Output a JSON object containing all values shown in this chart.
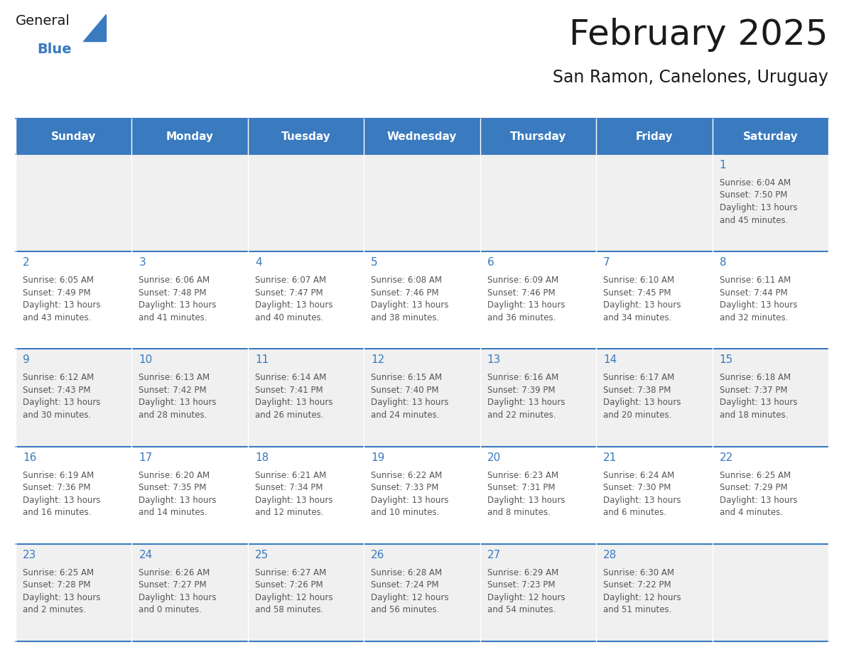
{
  "title": "February 2025",
  "subtitle": "San Ramon, Canelones, Uruguay",
  "header_bg": "#3a7abf",
  "header_text": "#ffffff",
  "cell_bg_light": "#f0f0f0",
  "cell_bg_white": "#ffffff",
  "day_number_color": "#3a7abf",
  "info_text_color": "#555555",
  "border_color": "#3a7abf",
  "days_of_week": [
    "Sunday",
    "Monday",
    "Tuesday",
    "Wednesday",
    "Thursday",
    "Friday",
    "Saturday"
  ],
  "calendar_data": [
    [
      null,
      null,
      null,
      null,
      null,
      null,
      {
        "day": 1,
        "sunrise": "6:04 AM",
        "sunset": "7:50 PM",
        "daylight_line1": "13 hours",
        "daylight_line2": "and 45 minutes."
      }
    ],
    [
      {
        "day": 2,
        "sunrise": "6:05 AM",
        "sunset": "7:49 PM",
        "daylight_line1": "13 hours",
        "daylight_line2": "and 43 minutes."
      },
      {
        "day": 3,
        "sunrise": "6:06 AM",
        "sunset": "7:48 PM",
        "daylight_line1": "13 hours",
        "daylight_line2": "and 41 minutes."
      },
      {
        "day": 4,
        "sunrise": "6:07 AM",
        "sunset": "7:47 PM",
        "daylight_line1": "13 hours",
        "daylight_line2": "and 40 minutes."
      },
      {
        "day": 5,
        "sunrise": "6:08 AM",
        "sunset": "7:46 PM",
        "daylight_line1": "13 hours",
        "daylight_line2": "and 38 minutes."
      },
      {
        "day": 6,
        "sunrise": "6:09 AM",
        "sunset": "7:46 PM",
        "daylight_line1": "13 hours",
        "daylight_line2": "and 36 minutes."
      },
      {
        "day": 7,
        "sunrise": "6:10 AM",
        "sunset": "7:45 PM",
        "daylight_line1": "13 hours",
        "daylight_line2": "and 34 minutes."
      },
      {
        "day": 8,
        "sunrise": "6:11 AM",
        "sunset": "7:44 PM",
        "daylight_line1": "13 hours",
        "daylight_line2": "and 32 minutes."
      }
    ],
    [
      {
        "day": 9,
        "sunrise": "6:12 AM",
        "sunset": "7:43 PM",
        "daylight_line1": "13 hours",
        "daylight_line2": "and 30 minutes."
      },
      {
        "day": 10,
        "sunrise": "6:13 AM",
        "sunset": "7:42 PM",
        "daylight_line1": "13 hours",
        "daylight_line2": "and 28 minutes."
      },
      {
        "day": 11,
        "sunrise": "6:14 AM",
        "sunset": "7:41 PM",
        "daylight_line1": "13 hours",
        "daylight_line2": "and 26 minutes."
      },
      {
        "day": 12,
        "sunrise": "6:15 AM",
        "sunset": "7:40 PM",
        "daylight_line1": "13 hours",
        "daylight_line2": "and 24 minutes."
      },
      {
        "day": 13,
        "sunrise": "6:16 AM",
        "sunset": "7:39 PM",
        "daylight_line1": "13 hours",
        "daylight_line2": "and 22 minutes."
      },
      {
        "day": 14,
        "sunrise": "6:17 AM",
        "sunset": "7:38 PM",
        "daylight_line1": "13 hours",
        "daylight_line2": "and 20 minutes."
      },
      {
        "day": 15,
        "sunrise": "6:18 AM",
        "sunset": "7:37 PM",
        "daylight_line1": "13 hours",
        "daylight_line2": "and 18 minutes."
      }
    ],
    [
      {
        "day": 16,
        "sunrise": "6:19 AM",
        "sunset": "7:36 PM",
        "daylight_line1": "13 hours",
        "daylight_line2": "and 16 minutes."
      },
      {
        "day": 17,
        "sunrise": "6:20 AM",
        "sunset": "7:35 PM",
        "daylight_line1": "13 hours",
        "daylight_line2": "and 14 minutes."
      },
      {
        "day": 18,
        "sunrise": "6:21 AM",
        "sunset": "7:34 PM",
        "daylight_line1": "13 hours",
        "daylight_line2": "and 12 minutes."
      },
      {
        "day": 19,
        "sunrise": "6:22 AM",
        "sunset": "7:33 PM",
        "daylight_line1": "13 hours",
        "daylight_line2": "and 10 minutes."
      },
      {
        "day": 20,
        "sunrise": "6:23 AM",
        "sunset": "7:31 PM",
        "daylight_line1": "13 hours",
        "daylight_line2": "and 8 minutes."
      },
      {
        "day": 21,
        "sunrise": "6:24 AM",
        "sunset": "7:30 PM",
        "daylight_line1": "13 hours",
        "daylight_line2": "and 6 minutes."
      },
      {
        "day": 22,
        "sunrise": "6:25 AM",
        "sunset": "7:29 PM",
        "daylight_line1": "13 hours",
        "daylight_line2": "and 4 minutes."
      }
    ],
    [
      {
        "day": 23,
        "sunrise": "6:25 AM",
        "sunset": "7:28 PM",
        "daylight_line1": "13 hours",
        "daylight_line2": "and 2 minutes."
      },
      {
        "day": 24,
        "sunrise": "6:26 AM",
        "sunset": "7:27 PM",
        "daylight_line1": "13 hours",
        "daylight_line2": "and 0 minutes."
      },
      {
        "day": 25,
        "sunrise": "6:27 AM",
        "sunset": "7:26 PM",
        "daylight_line1": "12 hours",
        "daylight_line2": "and 58 minutes."
      },
      {
        "day": 26,
        "sunrise": "6:28 AM",
        "sunset": "7:24 PM",
        "daylight_line1": "12 hours",
        "daylight_line2": "and 56 minutes."
      },
      {
        "day": 27,
        "sunrise": "6:29 AM",
        "sunset": "7:23 PM",
        "daylight_line1": "12 hours",
        "daylight_line2": "and 54 minutes."
      },
      {
        "day": 28,
        "sunrise": "6:30 AM",
        "sunset": "7:22 PM",
        "daylight_line1": "12 hours",
        "daylight_line2": "and 51 minutes."
      },
      null
    ]
  ],
  "logo_text_general": "General",
  "logo_text_blue": "Blue",
  "logo_triangle_color": "#3a7abf"
}
